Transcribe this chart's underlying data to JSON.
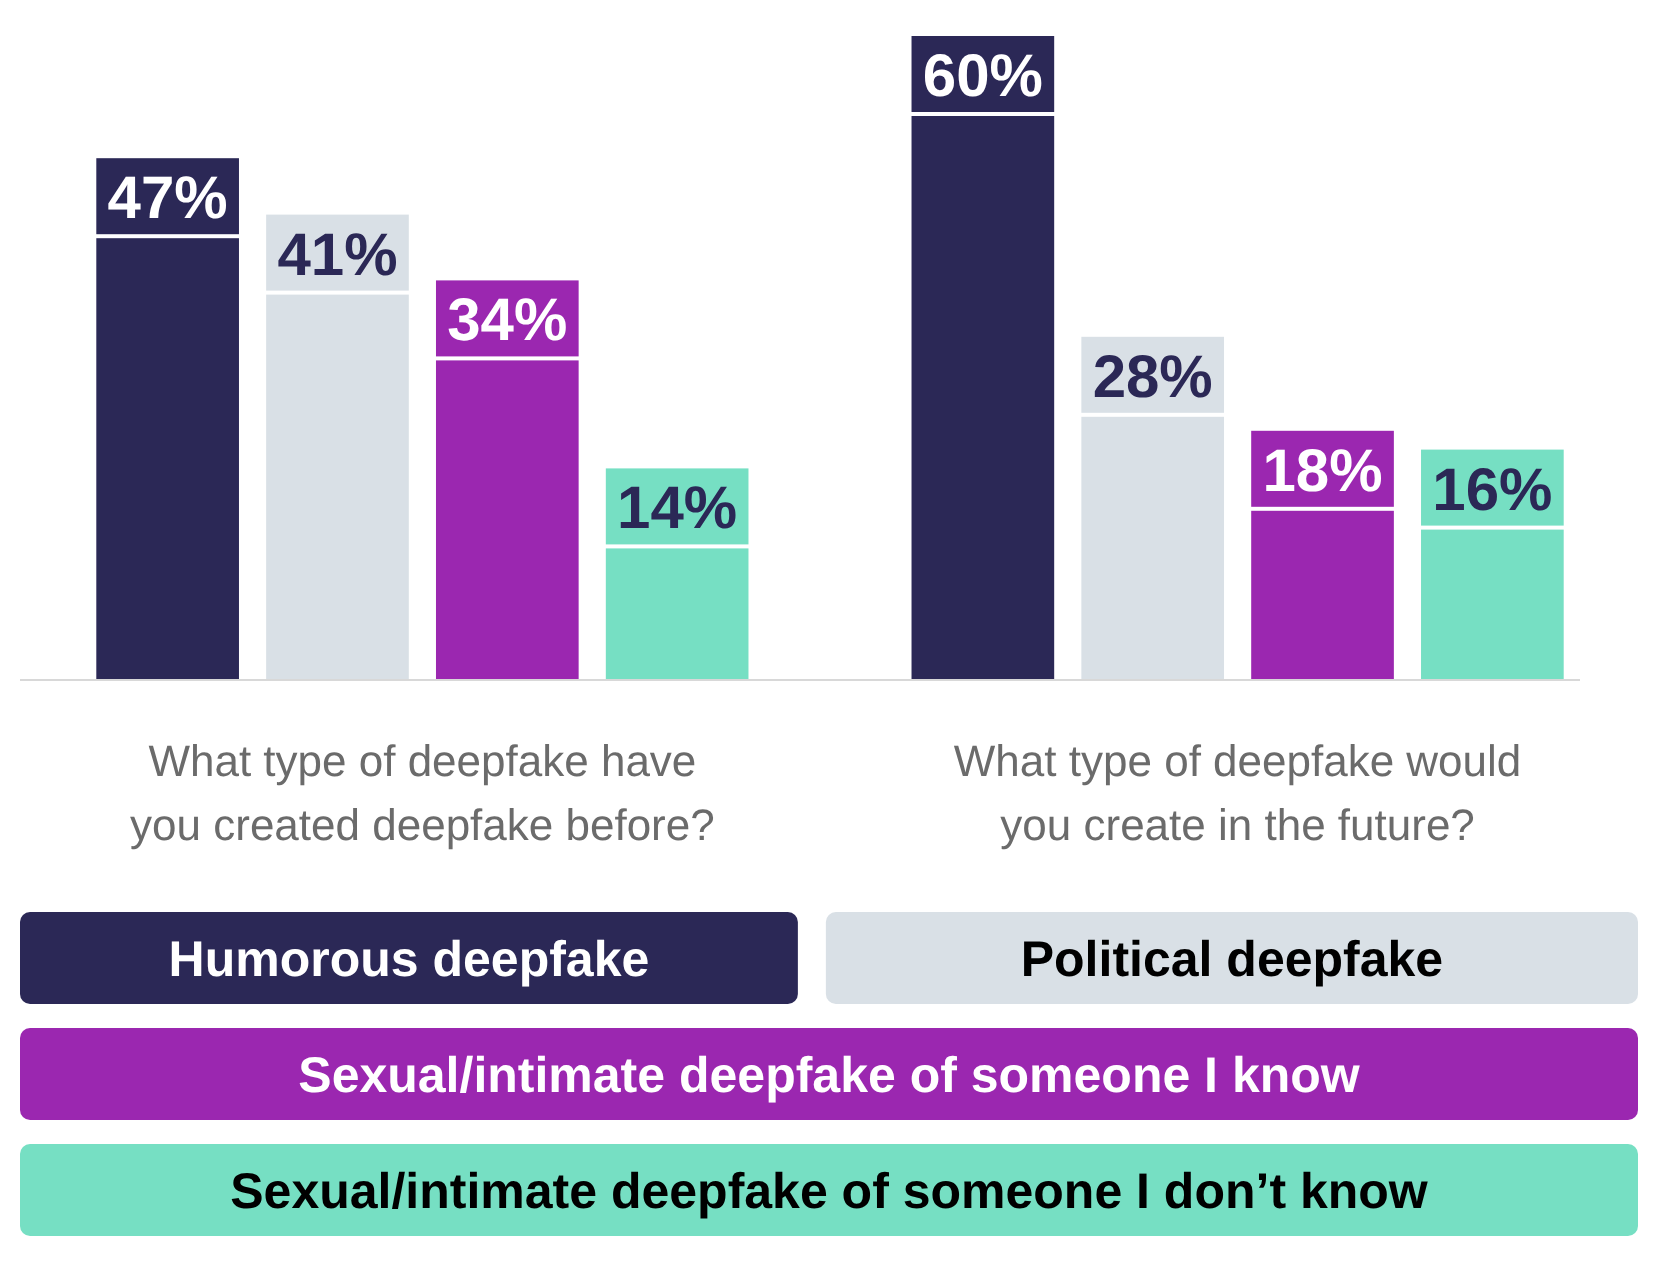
{
  "chart_data": {
    "type": "bar",
    "categories": [
      "What type of deepfake have you created deepfake before?",
      "What type of deepfake would you create in the future?"
    ],
    "series": [
      {
        "name": "Humorous deepfake",
        "color": "#2b2856",
        "values": [
          47,
          60
        ],
        "value_labels": [
          "47%",
          "60%"
        ]
      },
      {
        "name": "Political deepfake",
        "color": "#d9e0e6",
        "values": [
          41,
          28
        ],
        "value_labels": [
          "41%",
          "28%"
        ]
      },
      {
        "name": "Sexual/intimate deepfake of someone I know",
        "color": "#9b27b0",
        "values": [
          34,
          18
        ],
        "value_labels": [
          "34%",
          "18%"
        ]
      },
      {
        "name": "Sexual/intimate deepfake of someone I don’t know",
        "color": "#76dfc3",
        "values": [
          14,
          16
        ],
        "value_labels": [
          "14%",
          "16%"
        ]
      }
    ],
    "legend": "bottom"
  }
}
